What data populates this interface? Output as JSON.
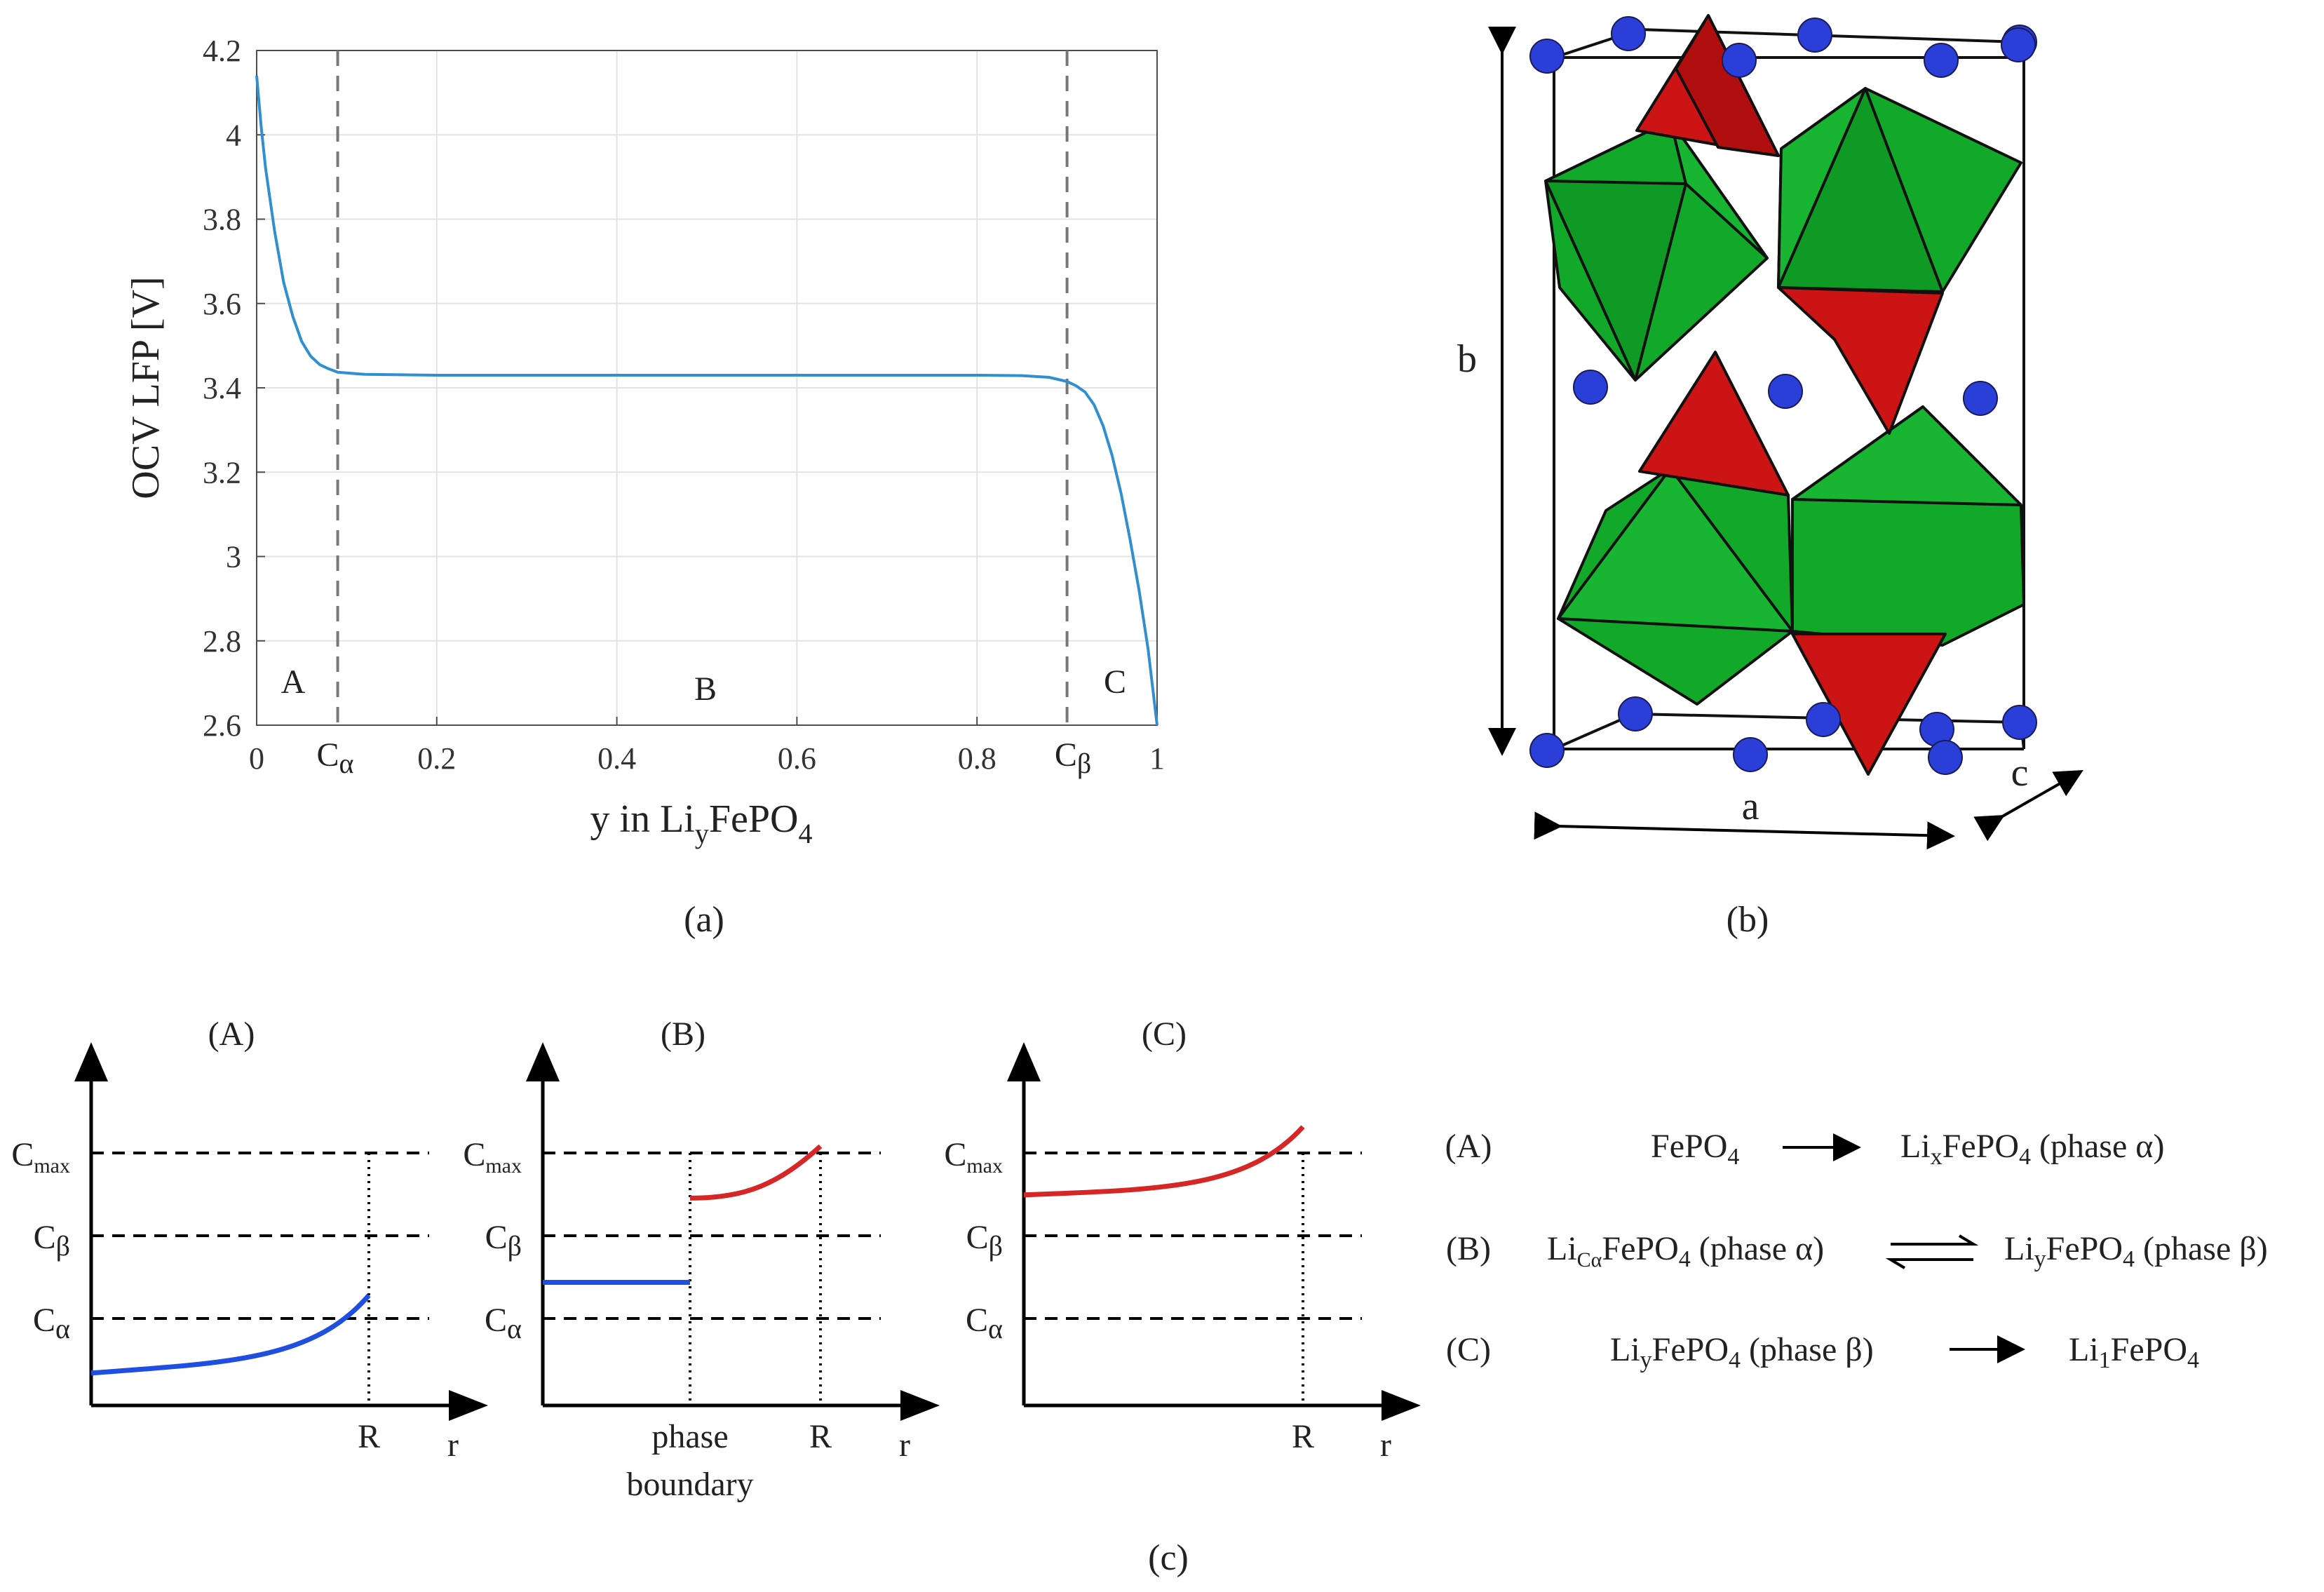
{
  "colors": {
    "ocv_line": "#2f8fd0",
    "grid": "#e3e3e3",
    "axis": "#4d4d4d",
    "dashed_marker": "#777777",
    "blue_profile": "#1f4fe0",
    "red_profile": "#d62626",
    "ion": "#2a3fd8",
    "octahedron": "#12a82a",
    "tetrahedron": "#cc1414"
  },
  "panel_a": {
    "caption": "(a)",
    "ylabel": "OCV LFP [V]",
    "xlabel_prefix": "y in Li",
    "xlabel_sub": "y",
    "xlabel_mid": "FePO",
    "xlabel_sub2": "4",
    "yticks": [
      "4.2",
      "4",
      "3.8",
      "3.6",
      "3.4",
      "3.2",
      "3",
      "2.8",
      "2.6"
    ],
    "xticks": [
      "0",
      "0.2",
      "0.4",
      "0.6",
      "0.8",
      "1"
    ],
    "c_alpha_main": "C",
    "c_alpha_sub": "α",
    "c_beta_main": "C",
    "c_beta_sub": "β",
    "region_a": "A",
    "region_b": "B",
    "region_c": "C"
  },
  "chart_data": {
    "type": "line",
    "title": "",
    "xlabel": "y in LiyFePO4",
    "ylabel": "OCV LFP [V]",
    "xlim": [
      0,
      1
    ],
    "ylim": [
      2.6,
      4.2
    ],
    "grid": true,
    "vertical_markers": [
      {
        "label": "Cα",
        "x": 0.09
      },
      {
        "label": "Cβ",
        "x": 0.9
      }
    ],
    "regions": [
      "A",
      "B",
      "C"
    ],
    "series": [
      {
        "name": "OCV LFP",
        "x": [
          0.0,
          0.005,
          0.01,
          0.02,
          0.03,
          0.04,
          0.05,
          0.06,
          0.07,
          0.08,
          0.09,
          0.12,
          0.2,
          0.4,
          0.6,
          0.8,
          0.85,
          0.88,
          0.9,
          0.91,
          0.92,
          0.93,
          0.94,
          0.95,
          0.96,
          0.97,
          0.98,
          0.99,
          1.0
        ],
        "y": [
          4.14,
          4.02,
          3.92,
          3.77,
          3.65,
          3.57,
          3.51,
          3.475,
          3.455,
          3.445,
          3.437,
          3.432,
          3.43,
          3.43,
          3.43,
          3.43,
          3.429,
          3.425,
          3.415,
          3.405,
          3.39,
          3.36,
          3.31,
          3.24,
          3.15,
          3.04,
          2.92,
          2.78,
          2.6
        ]
      }
    ]
  },
  "panel_b": {
    "caption": "(b)",
    "axis_a": "a",
    "axis_b": "b",
    "axis_c": "c"
  },
  "panel_c": {
    "caption": "(c)",
    "plots": [
      {
        "title": "(A)",
        "r_label": "r",
        "R_label": "R",
        "boundary_label_1": "",
        "boundary_label_2": "",
        "profile_values": [
          0.1,
          0.14,
          0.34
        ]
      },
      {
        "title": "(B)",
        "r_label": "r",
        "R_label": "R",
        "boundary_label_1": "phase",
        "boundary_label_2": "boundary",
        "profile_values": [
          0.38,
          0.64,
          0.8
        ]
      },
      {
        "title": "(C)",
        "r_label": "r",
        "R_label": "R",
        "boundary_label_1": "",
        "boundary_label_2": "",
        "profile_values": [
          0.65,
          0.67,
          0.86
        ]
      }
    ],
    "levels": {
      "cmax_main": "C",
      "cmax_sub": "max",
      "cbeta_main": "C",
      "cbeta_sub": "β",
      "calpha_main": "C",
      "calpha_sub": "α"
    },
    "reactions": {
      "A": {
        "tag": "(A)",
        "left_main": "FePO",
        "left_sub": "4",
        "right_main": "Li",
        "right_sub": "x",
        "right_rest": "FePO",
        "right_rest_sub": "4",
        "right_tail": " (phase α)"
      },
      "B": {
        "tag": "(B)",
        "left_main": "Li",
        "left_sub": "Cα",
        "left_rest": "FePO",
        "left_rest_sub": "4",
        "left_tail": " (phase α)",
        "right_main": "Li",
        "right_sub": "y",
        "right_rest": "FePO",
        "right_rest_sub": "4",
        "right_tail": " (phase β)"
      },
      "C": {
        "tag": "(C)",
        "left_main": "Li",
        "left_sub": "y",
        "left_rest": "FePO",
        "left_rest_sub": "4",
        "left_tail": " (phase β)",
        "right_main": "Li",
        "right_sub": "1",
        "right_rest": "FePO",
        "right_rest_sub": "4"
      }
    }
  }
}
